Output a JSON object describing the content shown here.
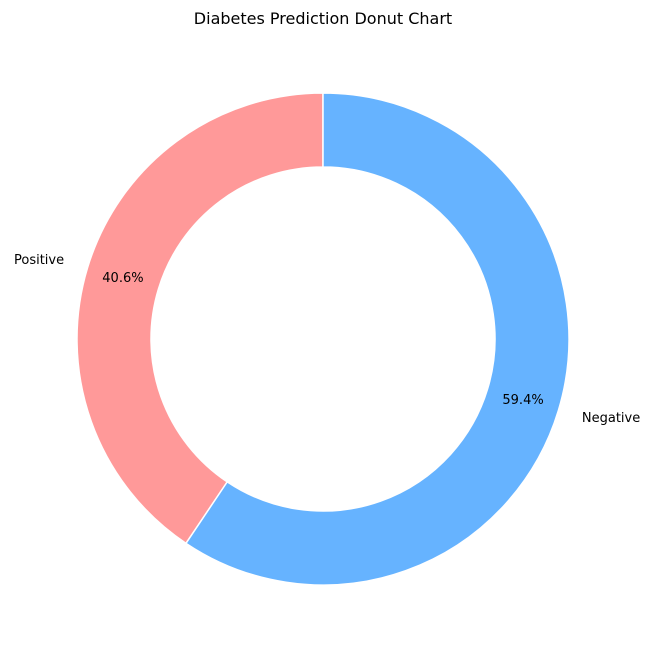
{
  "chart_data": {
    "type": "pie",
    "title": "Diabetes Prediction Donut Chart",
    "donut": true,
    "start_angle_deg": 90,
    "direction": "counterclockwise",
    "slices": [
      {
        "label": "Positive",
        "value": 40.6,
        "pct_label": "40.6%",
        "color": "#ff9999"
      },
      {
        "label": "Negative",
        "value": 59.4,
        "pct_label": "59.4%",
        "color": "#66b3ff"
      }
    ],
    "edge_color": "#ffffff"
  }
}
